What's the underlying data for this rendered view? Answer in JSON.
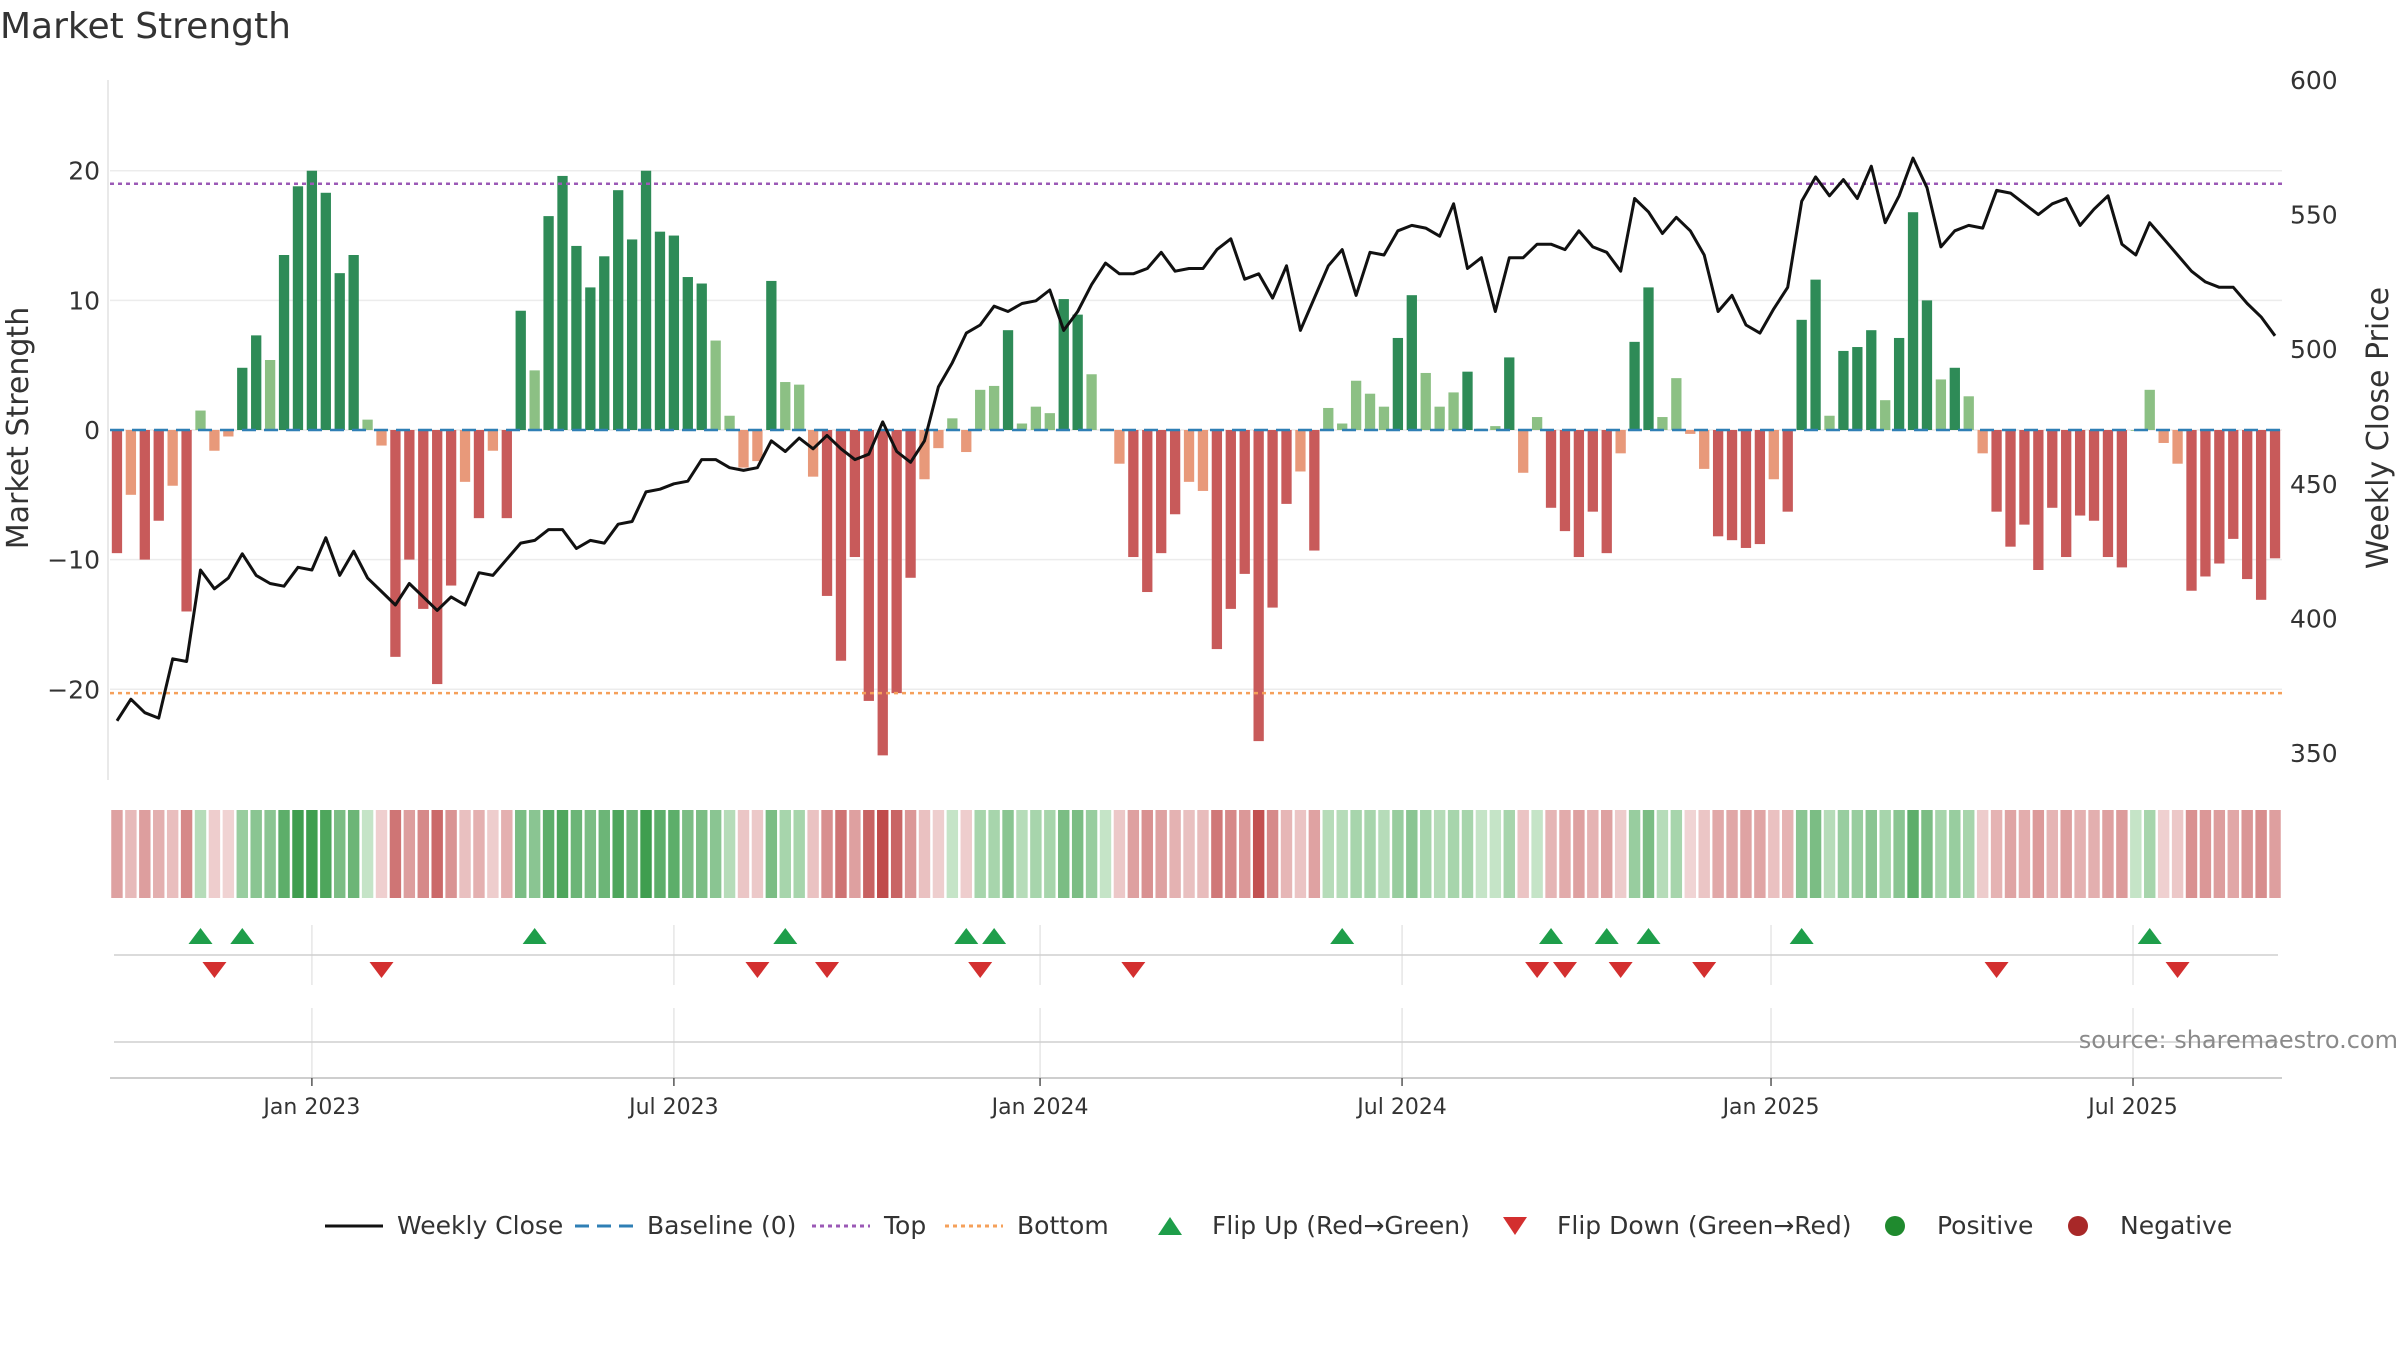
{
  "chart_data": {
    "type": "bar",
    "title": "Market Strength",
    "ylabel": "Market Strength",
    "y2label": "Weekly Close Price",
    "ylim": [
      -27,
      27
    ],
    "y2lim": [
      340,
      600
    ],
    "y_ticks": [
      20,
      10,
      0,
      -10,
      -20
    ],
    "y_tick_labels": [
      "20",
      "10",
      "0",
      "−10",
      "−20"
    ],
    "y2_ticks": [
      600,
      550,
      500,
      450,
      400,
      350
    ],
    "y2_tick_labels": [
      "600",
      "550",
      "500",
      "450",
      "400",
      "350"
    ],
    "x_tick_labels": [
      "Jan 2023",
      "Jul 2023",
      "Jan 2024",
      "Jul 2024",
      "Jan 2025",
      "Jul 2025"
    ],
    "x_tick_weeks": [
      14.5,
      40.5,
      66.8,
      92.8,
      119.3,
      145.3
    ],
    "top_line": 19,
    "bottom_line": -20.3,
    "baseline": 0,
    "strength": [
      -9.5,
      -5,
      -10,
      -7,
      -4.3,
      -14,
      1.5,
      -1.6,
      -0.5,
      4.8,
      7.3,
      5.4,
      13.5,
      18.8,
      20,
      18.3,
      12.1,
      13.5,
      0.8,
      -1.2,
      -17.5,
      -10,
      -13.8,
      -19.6,
      -12,
      -4,
      -6.8,
      -1.6,
      -6.8,
      9.2,
      4.6,
      16.5,
      19.6,
      14.2,
      11,
      13.4,
      18.5,
      14.7,
      20,
      15.3,
      15,
      11.8,
      11.3,
      6.9,
      1.1,
      -2.9,
      -2.4,
      11.5,
      3.7,
      3.5,
      -3.6,
      -12.8,
      -17.8,
      -9.8,
      -20.9,
      -25.1,
      -20.3,
      -11.4,
      -3.8,
      -1.4,
      0.9,
      -1.7,
      3.1,
      3.4,
      7.7,
      0.5,
      1.8,
      1.3,
      10.1,
      8.9,
      4.3,
      0.1,
      -2.6,
      -9.8,
      -12.5,
      -9.5,
      -6.5,
      -4,
      -4.7,
      -16.9,
      -13.8,
      -11.1,
      -24,
      -13.7,
      -5.7,
      -3.2,
      -9.3,
      1.7,
      0.5,
      3.8,
      2.8,
      1.8,
      7.1,
      10.4,
      4.4,
      1.8,
      2.9,
      4.5,
      0.1,
      0.3,
      5.6,
      -3.3,
      1,
      -6,
      -7.8,
      -9.8,
      -6.3,
      -9.5,
      -1.8,
      6.8,
      11,
      1,
      4,
      -0.3,
      -3,
      -8.2,
      -8.5,
      -9.1,
      -8.8,
      -3.8,
      -6.3,
      8.5,
      11.6,
      1.1,
      6.1,
      6.4,
      7.7,
      2.3,
      7.1,
      16.8,
      10,
      3.9,
      4.8,
      2.6,
      -1.8,
      -6.3,
      -9,
      -7.3,
      -10.8,
      -6,
      -9.8,
      -6.6,
      -7,
      -9.8,
      -10.6,
      0,
      3.1,
      -1,
      -2.6,
      -12.4,
      -11.3,
      -10.3,
      -8.4,
      -11.5,
      -13.1,
      -9.9
    ],
    "close": [
      362,
      370,
      365,
      363,
      385,
      384,
      418,
      411,
      415,
      424,
      416,
      413,
      412,
      419,
      418,
      430,
      416,
      425,
      415,
      410,
      405,
      413,
      408,
      403,
      408,
      405,
      417,
      416,
      422,
      428,
      429,
      433,
      433,
      426,
      429,
      428,
      435,
      436,
      447,
      448,
      450,
      451,
      459,
      459,
      456,
      455,
      456,
      466,
      462,
      467,
      463,
      468,
      463,
      459,
      461,
      473,
      462,
      458,
      466,
      486,
      495,
      506,
      509,
      516,
      514,
      517,
      518,
      522,
      507,
      514,
      524,
      532,
      528,
      528,
      530,
      536,
      529,
      530,
      530,
      537,
      541,
      526,
      528,
      519,
      531,
      507,
      519,
      531,
      537,
      520,
      536,
      535,
      544,
      546,
      545,
      542,
      554,
      530,
      534,
      514,
      534,
      534,
      539,
      539,
      537,
      544,
      538,
      536,
      529,
      556,
      551,
      543,
      549,
      544,
      535,
      514,
      520,
      509,
      506,
      515,
      523,
      555,
      564,
      557,
      563,
      556,
      568,
      547,
      557,
      571,
      560,
      538,
      544,
      546,
      545,
      559,
      558,
      554,
      550,
      554,
      556,
      546,
      552,
      557,
      539,
      535,
      547,
      541,
      535,
      529,
      525,
      523,
      523,
      517,
      512,
      505
    ],
    "positive_intensity": [
      0,
      0,
      0,
      0,
      0,
      0,
      0.2,
      0,
      0,
      0.4,
      0.5,
      0.5,
      0.8,
      1.0,
      1.0,
      0.9,
      0.6,
      0.7,
      0.1,
      0,
      0,
      0,
      0,
      0,
      0,
      0,
      0,
      0,
      0,
      0.6,
      0.5,
      0.8,
      0.9,
      0.7,
      0.6,
      0.7,
      0.9,
      0.7,
      1.0,
      0.8,
      0.8,
      0.6,
      0.6,
      0.5,
      0.2,
      0,
      0,
      0.6,
      0.3,
      0.3,
      0,
      0,
      0,
      0,
      0,
      0,
      0,
      0,
      0,
      0,
      0.1,
      0,
      0.3,
      0.3,
      0.5,
      0.2,
      0.3,
      0.3,
      0.6,
      0.6,
      0.4,
      0.1,
      0,
      0,
      0,
      0,
      0,
      0,
      0,
      0,
      0,
      0,
      0,
      0,
      0,
      0,
      0,
      0.2,
      0.2,
      0.3,
      0.3,
      0.2,
      0.4,
      0.5,
      0.3,
      0.2,
      0.3,
      0.3,
      0.1,
      0.1,
      0.3,
      0,
      0.1,
      0,
      0,
      0,
      0,
      0,
      0,
      0.4,
      0.6,
      0.2,
      0.3,
      0,
      0,
      0,
      0,
      0,
      0,
      0,
      0,
      0.5,
      0.6,
      0.2,
      0.4,
      0.4,
      0.5,
      0.3,
      0.5,
      0.8,
      0.6,
      0.3,
      0.4,
      0.3,
      0,
      0,
      0,
      0,
      0,
      0,
      0,
      0,
      0,
      0,
      0,
      0.1,
      0.3,
      0,
      0,
      0,
      0,
      0,
      0,
      0,
      0,
      0
    ],
    "flip_up_weeks": [
      6,
      9,
      30,
      48,
      61,
      63,
      88,
      103,
      107,
      110,
      121,
      146
    ],
    "flip_down_weeks": [
      7,
      19,
      46,
      51,
      62,
      73,
      102,
      104,
      108,
      114,
      135,
      148
    ],
    "legend": [
      "Weekly Close",
      "Baseline (0)",
      "Top",
      "Bottom",
      "Flip Up (Red→Green)",
      "Flip Down (Green→Red)",
      "Positive",
      "Negative"
    ],
    "legend_position": "bottom-center",
    "source": "source: sharemaestro.com",
    "colors": {
      "pos_strong": "#2e8b57",
      "pos_weak": "#8cc084",
      "neg_strong": "#c85a5a",
      "neg_weak": "#e8997a",
      "close": "#111111",
      "baseline": "#2f7fb5",
      "top": "#9b59b6",
      "bottom": "#f5a05a",
      "flip_up": "#1e9e4a",
      "flip_down": "#d32f2f",
      "positive": "#1f8a2e",
      "negative": "#a82828"
    }
  }
}
